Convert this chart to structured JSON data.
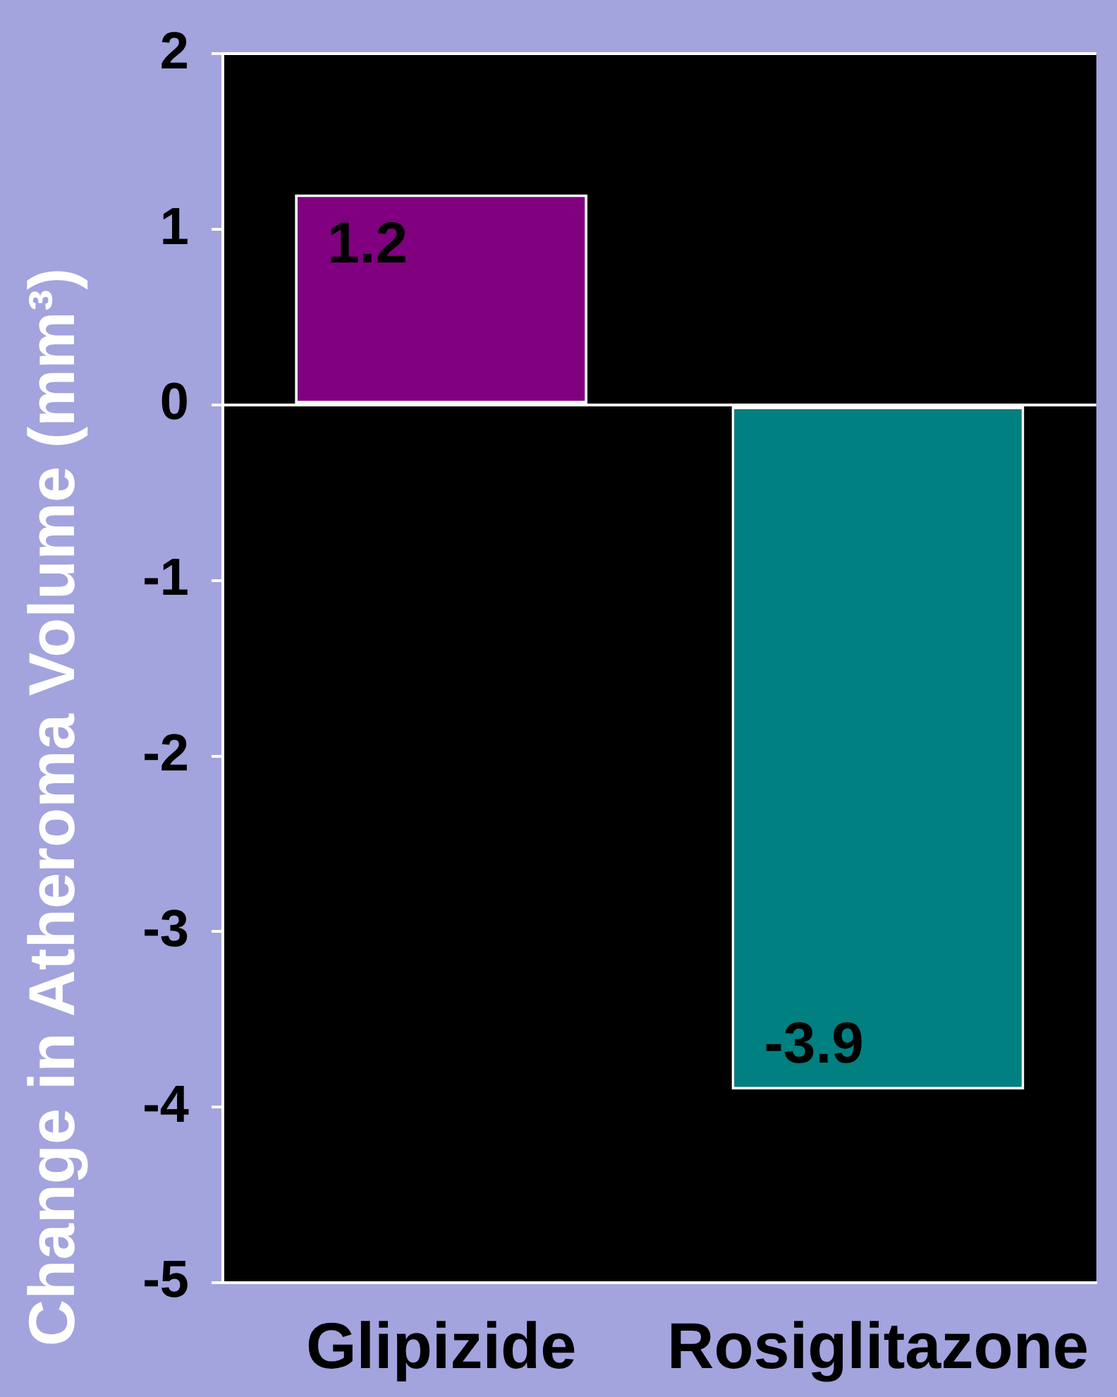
{
  "chart_data": {
    "type": "bar",
    "ylabel": "Change in Atheroma Volume (mm³)",
    "categories": [
      "Glipizide",
      "Rosiglitazone"
    ],
    "values": [
      1.2,
      -3.9
    ],
    "colors": [
      "#800080",
      "#008080"
    ],
    "ylim": [
      -5,
      2
    ],
    "yticks": [
      -5,
      -4,
      -3,
      -2,
      -1,
      0,
      1,
      2
    ],
    "data_labels": true
  }
}
